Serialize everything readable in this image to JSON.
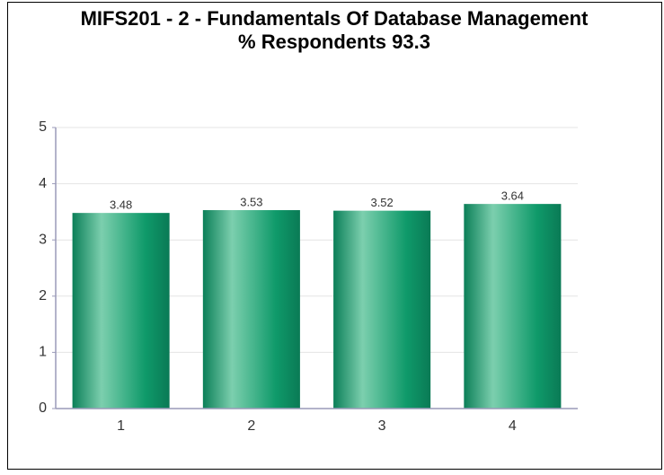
{
  "chart_data": {
    "type": "bar",
    "title": "MIFS201 - 2 - Fundamentals Of Database Management",
    "subtitle": "% Respondents 93.3",
    "categories": [
      "1",
      "2",
      "3",
      "4"
    ],
    "values": [
      3.48,
      3.53,
      3.52,
      3.64
    ],
    "color": "#139a6c",
    "ylim": [
      0,
      5
    ],
    "yticks": [
      0,
      1,
      2,
      3,
      4,
      5
    ],
    "grid": true
  }
}
